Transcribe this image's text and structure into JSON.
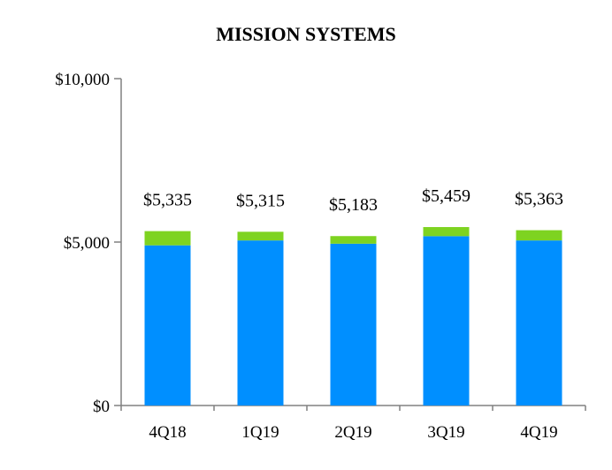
{
  "chart_data": {
    "type": "bar",
    "stacked": true,
    "title": "MISSION SYSTEMS",
    "xlabel": "",
    "ylabel": "",
    "categories": [
      "4Q18",
      "1Q19",
      "2Q19",
      "3Q19",
      "4Q19"
    ],
    "series": [
      {
        "color": "#008FFF",
        "values": [
          4900,
          5050,
          4950,
          5180,
          5050
        ]
      },
      {
        "color": "#7ED321",
        "values": [
          435,
          265,
          233,
          279,
          313
        ]
      }
    ],
    "totals": [
      5335,
      5315,
      5183,
      5459,
      5363
    ],
    "total_labels": [
      "$5,335",
      "$5,315",
      "$5,183",
      "$5,459",
      "$5,363"
    ],
    "yticks": [
      0,
      5000,
      10000
    ],
    "ytick_labels": [
      "$0",
      "$5,000",
      "$10,000"
    ],
    "ylim": [
      0,
      10000
    ],
    "grid": false,
    "legend": "none"
  }
}
